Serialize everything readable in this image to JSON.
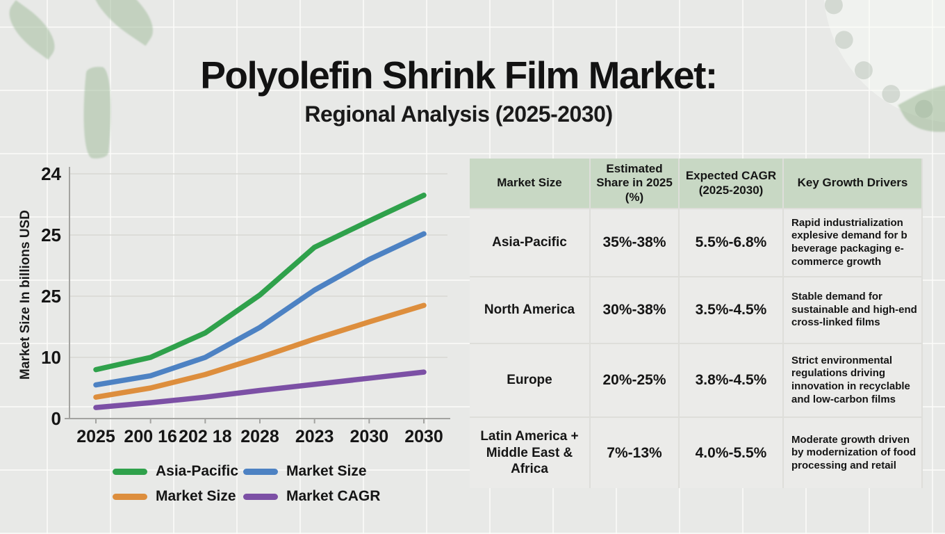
{
  "title": "Polyolefin Shrink Film Market:",
  "subtitle": "Regional Analysis (2025-2030)",
  "chart_data": {
    "type": "line",
    "title": "",
    "xlabel": "",
    "ylabel": "Market Size In billions USD",
    "x_tick_labels": [
      "2025",
      "200 16",
      "202 18",
      "2028",
      "2023",
      "2030",
      "2030"
    ],
    "y_tick_labels": [
      "24",
      "25",
      "25",
      "10",
      "0"
    ],
    "value_range": [
      0,
      40
    ],
    "grid": true,
    "legend_position": "bottom",
    "series": [
      {
        "name": "Asia-Pacific",
        "color": "#2fa14b",
        "values": [
          8.0,
          10.0,
          14.0,
          20.2,
          28.0,
          32.3,
          36.5
        ]
      },
      {
        "name": "Market Size",
        "color": "#4d82c3",
        "values": [
          5.5,
          7.0,
          10.0,
          14.9,
          21.0,
          26.0,
          30.2
        ]
      },
      {
        "name": "Market Size",
        "color": "#dd8e3d",
        "values": [
          3.5,
          5.0,
          7.2,
          10.0,
          13.0,
          15.8,
          18.5
        ]
      },
      {
        "name": "Market CAGR",
        "color": "#7c50a5",
        "values": [
          1.8,
          2.6,
          3.5,
          4.6,
          5.6,
          6.6,
          7.6
        ]
      }
    ]
  },
  "legend": {
    "items": [
      {
        "label": "Asia-Pacific",
        "color": "#2fa14b"
      },
      {
        "label": "Market Size",
        "color": "#4d82c3"
      },
      {
        "label": "Market Size",
        "color": "#dd8e3d"
      },
      {
        "label": "Market CAGR",
        "color": "#7c50a5"
      }
    ]
  },
  "table": {
    "header_bg": "#c8d8c4",
    "headers": [
      "Market Size",
      "Estimated Share in 2025 (%)",
      "Expected CAGR (2025-2030)",
      "Key Growth Drivers"
    ],
    "rows": [
      {
        "region": "Asia-Pacific",
        "share": "35%-38%",
        "cagr": "5.5%-6.8%",
        "drivers": "Rapid industrialization explesive demand for b beverage packaging e-commerce growth"
      },
      {
        "region": "North America",
        "share": "30%-38%",
        "cagr": "3.5%-4.5%",
        "drivers": "Stable demand for sustainable and high-end cross-linked films"
      },
      {
        "region": "Europe",
        "share": "20%-25%",
        "cagr": "3.8%-4.5%",
        "drivers": "Strict environmental regulations driving innovation in recyclable and low-carbon films"
      },
      {
        "region": "Latin America + Middle East & Africa",
        "share": "7%-13%",
        "cagr": "4.0%-5.5%",
        "drivers": "Moderate growth driven by modernization of food processing and retail"
      }
    ]
  },
  "colors": {
    "background": "#e8e9e7",
    "table_header_green": "#c8d8c4",
    "axis_gray": "#a3a3a0"
  }
}
